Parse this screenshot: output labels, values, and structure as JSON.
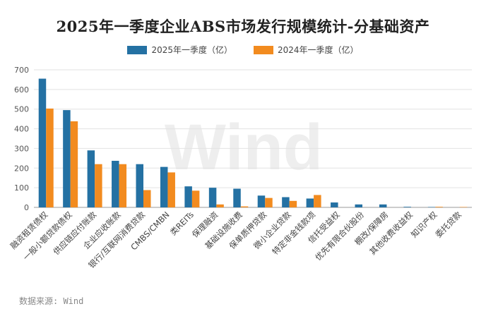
{
  "chart_data": {
    "type": "bar",
    "title": "2025年一季度企业ABS市场发行规模统计-分基础资产",
    "xlabel": "",
    "ylabel": "",
    "ylim": [
      0,
      700
    ],
    "yticks": [
      0,
      100,
      200,
      300,
      400,
      500,
      600,
      700
    ],
    "grid": true,
    "legend_position": "top-center",
    "categories": [
      "融资租赁债权",
      "一般小额贷款债权",
      "供应链应付账款",
      "企业应收账款",
      "银行/互联网消费贷款",
      "CMBS/CMBN",
      "类REITs",
      "保理融资",
      "基础设施收费",
      "保单质押贷款",
      "微小企业贷款",
      "特定非金钱款项",
      "信托受益权",
      "优先有限合伙股份",
      "棚改/保障房",
      "其他收费收益权",
      "知识产权",
      "委托贷款"
    ],
    "series": [
      {
        "name": "2025年一季度（亿）",
        "color": "#2471a3",
        "values": [
          655,
          495,
          290,
          237,
          220,
          206,
          107,
          100,
          95,
          60,
          52,
          45,
          25,
          15,
          15,
          3,
          2,
          0
        ]
      },
      {
        "name": "2024年一季度（亿）",
        "color": "#f28b1f",
        "values": [
          503,
          438,
          220,
          220,
          88,
          178,
          85,
          15,
          5,
          48,
          33,
          63,
          0,
          0,
          0,
          0,
          3,
          2
        ]
      }
    ]
  },
  "watermark": "Wind",
  "source_note": "数据来源: Wind"
}
